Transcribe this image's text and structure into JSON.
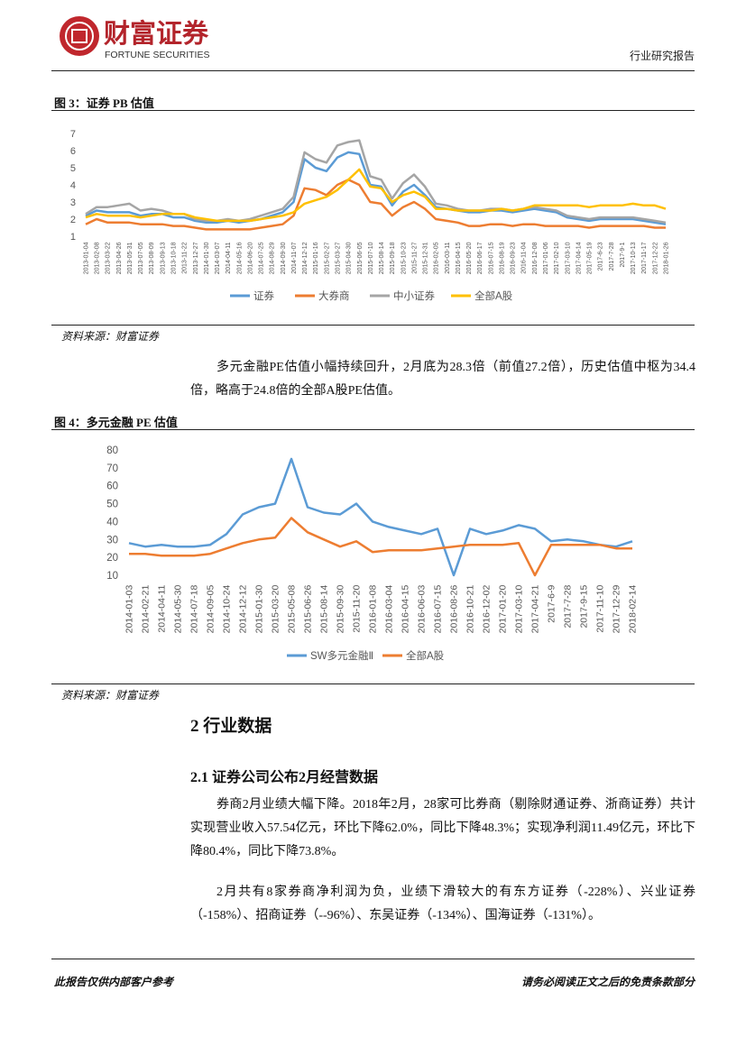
{
  "header": {
    "logo_cn": "财富证券",
    "logo_en": "FORTUNE SECURITIES",
    "right": "行业研究报告"
  },
  "chart_data": [
    {
      "type": "line",
      "title": "图 3：证券 PB 估值",
      "categories": [
        "2013-01-04",
        "2013-02-08",
        "2013-03-22",
        "2013-04-26",
        "2013-05-31",
        "2013-07-05",
        "2013-08-09",
        "2013-09-13",
        "2013-10-18",
        "2013-11-22",
        "2013-12-27",
        "2014-01-30",
        "2014-03-07",
        "2014-04-11",
        "2014-05-16",
        "2014-06-20",
        "2014-07-25",
        "2014-08-29",
        "2014-09-30",
        "2014-11-07",
        "2014-12-12",
        "2015-01-16",
        "2015-02-27",
        "2015-03-27",
        "2015-04-30",
        "2015-06-05",
        "2015-07-10",
        "2015-08-14",
        "2015-09-18",
        "2015-10-23",
        "2015-11-27",
        "2015-12-31",
        "2016-02-05",
        "2016-03-11",
        "2016-04-15",
        "2016-05-20",
        "2016-06-17",
        "2016-07-15",
        "2016-08-19",
        "2016-09-23",
        "2016-11-04",
        "2016-12-08",
        "2017-01-06",
        "2017-02-10",
        "2017-03-10",
        "2017-04-14",
        "2017-05-19",
        "2017-6-23",
        "2017-7-28",
        "2017-9-1",
        "2017-10-13",
        "2017-11-17",
        "2017-12-22",
        "2018-01-26"
      ],
      "series": [
        {
          "name": "证券",
          "color": "#5b9bd5",
          "values": [
            2.2,
            2.5,
            2.4,
            2.4,
            2.4,
            2.2,
            2.3,
            2.3,
            2.1,
            2.1,
            1.9,
            1.8,
            1.8,
            1.9,
            1.8,
            1.9,
            2.0,
            2.2,
            2.4,
            3.0,
            5.5,
            5.0,
            4.8,
            5.6,
            5.9,
            5.8,
            4.0,
            3.9,
            2.8,
            3.6,
            4.0,
            3.4,
            2.7,
            2.6,
            2.5,
            2.4,
            2.4,
            2.5,
            2.5,
            2.4,
            2.5,
            2.6,
            2.5,
            2.4,
            2.1,
            2.0,
            1.9,
            2.0,
            2.0,
            2.0,
            2.0,
            1.9,
            1.8,
            1.7
          ]
        },
        {
          "name": "大券商",
          "color": "#ed7d31",
          "values": [
            1.7,
            2.0,
            1.8,
            1.8,
            1.8,
            1.7,
            1.7,
            1.7,
            1.6,
            1.6,
            1.5,
            1.4,
            1.4,
            1.4,
            1.4,
            1.4,
            1.5,
            1.6,
            1.7,
            2.2,
            3.8,
            3.7,
            3.4,
            4.0,
            4.3,
            4.0,
            3.0,
            2.9,
            2.2,
            2.7,
            3.0,
            2.6,
            2.0,
            1.9,
            1.8,
            1.6,
            1.6,
            1.7,
            1.7,
            1.6,
            1.7,
            1.7,
            1.6,
            1.6,
            1.6,
            1.6,
            1.5,
            1.6,
            1.6,
            1.6,
            1.6,
            1.6,
            1.5,
            1.5
          ]
        },
        {
          "name": "中小证券",
          "color": "#a5a5a5",
          "values": [
            2.3,
            2.7,
            2.7,
            2.8,
            2.9,
            2.5,
            2.6,
            2.5,
            2.3,
            2.3,
            2.0,
            1.9,
            1.9,
            2.0,
            1.9,
            2.0,
            2.2,
            2.4,
            2.6,
            3.3,
            5.9,
            5.5,
            5.3,
            6.3,
            6.5,
            6.6,
            4.5,
            4.3,
            3.2,
            4.1,
            4.6,
            3.9,
            2.9,
            2.8,
            2.6,
            2.5,
            2.5,
            2.6,
            2.6,
            2.5,
            2.6,
            2.7,
            2.6,
            2.5,
            2.2,
            2.1,
            2.0,
            2.1,
            2.1,
            2.1,
            2.1,
            2.0,
            1.9,
            1.8
          ]
        },
        {
          "name": "全部A股",
          "color": "#ffc000",
          "values": [
            2.1,
            2.3,
            2.2,
            2.2,
            2.2,
            2.1,
            2.2,
            2.3,
            2.3,
            2.3,
            2.1,
            2.0,
            1.9,
            1.9,
            1.9,
            1.9,
            2.0,
            2.1,
            2.2,
            2.4,
            2.9,
            3.1,
            3.3,
            3.7,
            4.3,
            4.9,
            3.9,
            3.8,
            3.0,
            3.4,
            3.6,
            3.3,
            2.6,
            2.6,
            2.5,
            2.5,
            2.5,
            2.5,
            2.6,
            2.5,
            2.6,
            2.8,
            2.8,
            2.8,
            2.8,
            2.8,
            2.7,
            2.8,
            2.8,
            2.8,
            2.9,
            2.8,
            2.8,
            2.6
          ]
        }
      ],
      "ylim": [
        1,
        7
      ],
      "yticks": [
        1,
        2,
        3,
        4,
        5,
        6,
        7
      ],
      "grid": false,
      "legend": "bottom",
      "source": "资料来源：财富证券"
    },
    {
      "type": "line",
      "title": "图 4：多元金融 PE 估值",
      "categories": [
        "2014-01-03",
        "2014-02-21",
        "2014-04-11",
        "2014-05-30",
        "2014-07-18",
        "2014-09-05",
        "2014-10-24",
        "2014-12-12",
        "2015-01-30",
        "2015-03-20",
        "2015-05-08",
        "2015-06-26",
        "2015-08-14",
        "2015-09-30",
        "2015-11-20",
        "2016-01-08",
        "2016-03-04",
        "2016-04-15",
        "2016-06-03",
        "2016-07-15",
        "2016-08-26",
        "2016-10-21",
        "2016-12-02",
        "2017-01-20",
        "2017-03-10",
        "2017-04-21",
        "2017-6-9",
        "2017-7-28",
        "2017-9-15",
        "2017-11-10",
        "2017-12-29",
        "2018-02-14"
      ],
      "series": [
        {
          "name": "SW多元金融Ⅱ",
          "color": "#5b9bd5",
          "values": [
            28,
            26,
            27,
            26,
            26,
            27,
            33,
            44,
            48,
            50,
            75,
            48,
            45,
            44,
            50,
            40,
            37,
            35,
            33,
            36,
            10,
            36,
            33,
            35,
            38,
            36,
            29,
            30,
            29,
            27,
            26,
            29
          ]
        },
        {
          "name": "全部A股",
          "color": "#ed7d31",
          "values": [
            22,
            22,
            21,
            21,
            21,
            22,
            25,
            28,
            30,
            31,
            42,
            34,
            30,
            26,
            29,
            23,
            24,
            24,
            24,
            25,
            26,
            27,
            27,
            27,
            28,
            10,
            27,
            27,
            27,
            27,
            25,
            25
          ]
        }
      ],
      "ylim": [
        10,
        80
      ],
      "yticks": [
        10,
        20,
        30,
        40,
        50,
        60,
        70,
        80
      ],
      "grid": false,
      "legend": "bottom",
      "source": "资料来源：财富证券"
    }
  ],
  "paragraph1": "多元金融PE估值小幅持续回升，2月底为28.3倍（前值27.2倍），历史估值中枢为34.4倍，略高于24.8倍的全部A股PE估值。",
  "section": "2 行业数据",
  "subsection": "2.1 证券公司公布2月经营数据",
  "paragraph2": "券商2月业绩大幅下降。2018年2月，28家可比券商（剔除财通证券、浙商证券）共计实现营业收入57.54亿元，环比下降62.0%，同比下降48.3%；实现净利润11.49亿元，环比下降80.4%，同比下降73.8%。",
  "paragraph3": "2月共有8家券商净利润为负，业绩下滑较大的有东方证券（-228%）、兴业证券（-158%）、招商证券（--96%）、东吴证券（-134%）、国海证券（-131%）。",
  "footer": {
    "left": "此报告仅供内部客户参考",
    "right": "请务必阅读正文之后的免责条款部分"
  }
}
